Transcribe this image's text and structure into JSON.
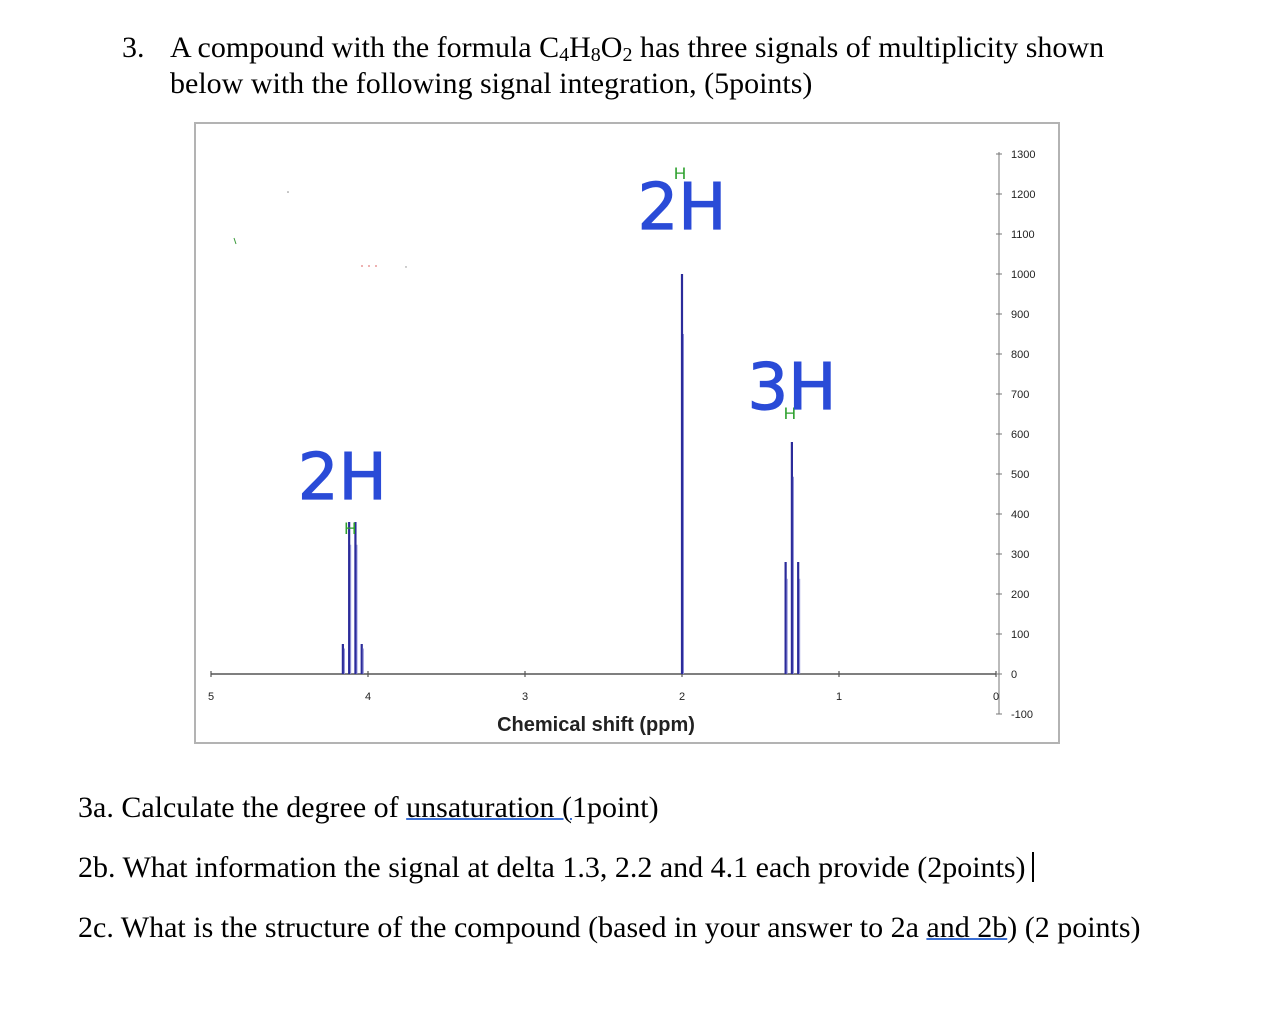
{
  "question": {
    "number": "3.",
    "line1_pre": "A compound with the formula C",
    "formula_sub1": "4",
    "formula_mid1": "H",
    "formula_sub2": "8",
    "formula_mid2": "O",
    "formula_sub3": "2",
    "line1_post": " has three signals of multiplicity shown",
    "line2": "below with the following signal integration, (5points)"
  },
  "chart_data": {
    "type": "line",
    "xlabel": "Chemical shift (ppm)",
    "ylabel": "",
    "xlim": [
      5,
      0
    ],
    "ylim": [
      -100,
      1300
    ],
    "x_ticks": [
      "5",
      "4",
      "3",
      "2",
      "1",
      "0"
    ],
    "y_ticks": [
      "1300",
      "1200",
      "1100",
      "1000",
      "900",
      "800",
      "700",
      "600",
      "500",
      "400",
      "300",
      "200",
      "100",
      "0",
      "-100"
    ],
    "peaks": [
      {
        "name": "quartet",
        "shift": 4.1,
        "lines": [
          {
            "x": 4.16,
            "y": 75
          },
          {
            "x": 4.12,
            "y": 380
          },
          {
            "x": 4.08,
            "y": 380
          },
          {
            "x": 4.04,
            "y": 75
          }
        ]
      },
      {
        "name": "singlet",
        "shift": 2.0,
        "lines": [
          {
            "x": 2.0,
            "y": 1000
          }
        ]
      },
      {
        "name": "triplet",
        "shift": 1.3,
        "lines": [
          {
            "x": 1.34,
            "y": 280
          },
          {
            "x": 1.3,
            "y": 580
          },
          {
            "x": 1.26,
            "y": 280
          }
        ]
      }
    ],
    "annotations": [
      {
        "text": "2H",
        "near_shift": 4.1
      },
      {
        "text": "2H",
        "near_shift": 2.0
      },
      {
        "text": "3H",
        "near_shift": 1.3
      }
    ],
    "h_labels": [
      "H",
      "H",
      "H"
    ],
    "colors": {
      "peaks": "#2b2b9a",
      "annotation_ink": "#2a4bd7",
      "h_label": "#2ca02c"
    }
  },
  "subquestions": {
    "a_pre": "3a. Calculate the degree of ",
    "a_underlined": "unsaturation  (",
    "a_post": "1point)",
    "b": "2b. What information the signal at delta 1.3,  2.2 and 4.1 each provide (2points)",
    "c_pre": "2c. What is the structure of the compound (based in your answer to 2a ",
    "c_underlined": "and  2b",
    "c_post": ") (2 points)"
  }
}
